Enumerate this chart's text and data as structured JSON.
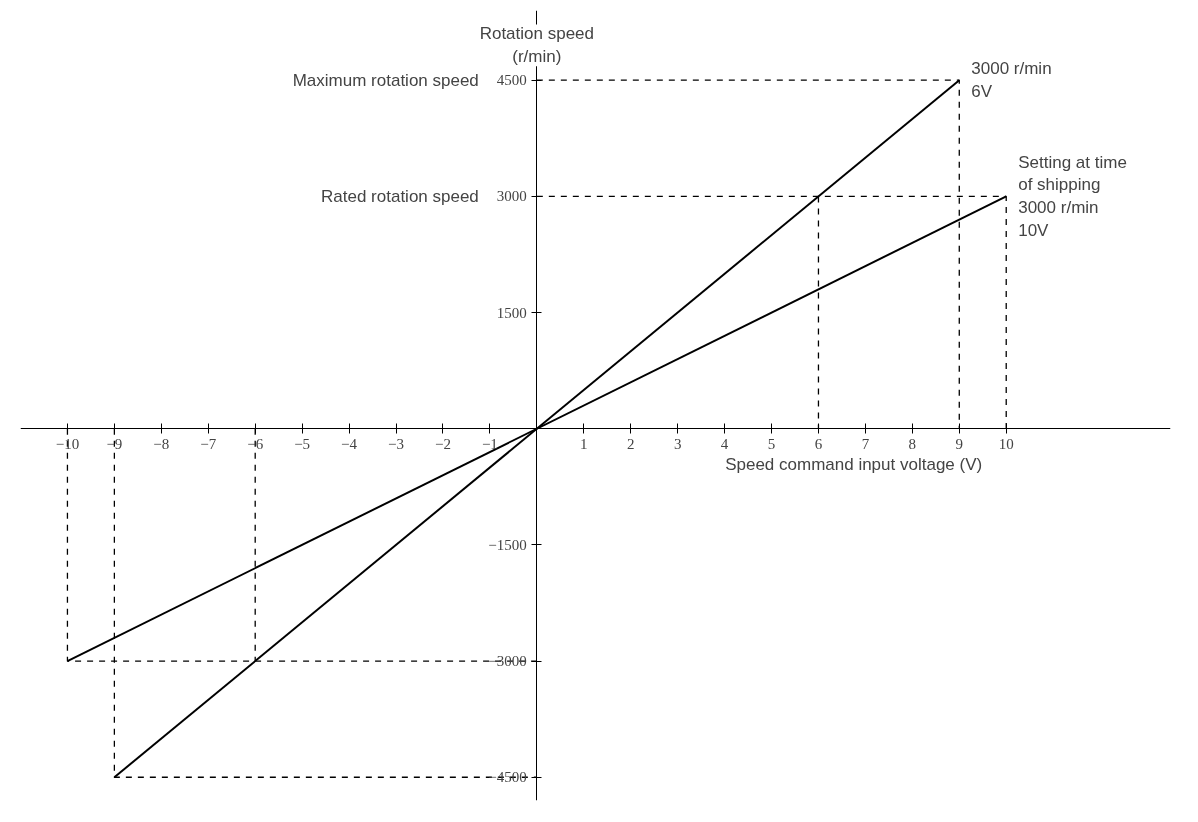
{
  "chart_data": {
    "type": "line",
    "xlabel": "Speed command input voltage (V)",
    "ylabel": "Rotation speed\n(r/min)",
    "xlim": [
      -11,
      13.5
    ],
    "ylim": [
      -4800,
      5400
    ],
    "xticks": [
      -10,
      -9,
      -8,
      -7,
      -6,
      -5,
      -4,
      -3,
      -2,
      -1,
      1,
      2,
      3,
      4,
      5,
      6,
      7,
      8,
      9,
      10
    ],
    "yticks": [
      -4500,
      -3000,
      -1500,
      1500,
      3000,
      4500
    ],
    "grid": false,
    "marker": "none",
    "series": [
      {
        "color": "#000000",
        "x": [
          -9,
          9
        ],
        "values": [
          -4500,
          4500
        ],
        "line_style": "solid"
      },
      {
        "color": "#000000",
        "x": [
          -10,
          10
        ],
        "values": [
          -3000,
          3000
        ],
        "line_style": "solid"
      },
      {
        "color": "#000000",
        "x": [
          0,
          9,
          9
        ],
        "values": [
          4500,
          4500,
          0
        ],
        "line_style": "dashed"
      },
      {
        "color": "#000000",
        "x": [
          0,
          10,
          10
        ],
        "values": [
          3000,
          3000,
          0
        ],
        "line_style": "dashed"
      },
      {
        "color": "#000000",
        "x": [
          6,
          6
        ],
        "values": [
          3000,
          0
        ],
        "line_style": "dashed"
      },
      {
        "color": "#000000",
        "x": [
          -10,
          -10,
          0
        ],
        "values": [
          0,
          -3000,
          -3000
        ],
        "line_style": "dashed"
      },
      {
        "color": "#000000",
        "x": [
          -9,
          -9,
          0
        ],
        "values": [
          0,
          -4500,
          -4500
        ],
        "line_style": "dashed"
      },
      {
        "color": "#000000",
        "x": [
          -6,
          -6
        ],
        "values": [
          0,
          -3000
        ],
        "line_style": "dashed"
      }
    ],
    "annotations": [
      "Maximum rotation speed",
      "Rated rotation speed",
      {
        "text": "3000 r/min\n6V",
        "x": 9,
        "y": 4500
      },
      {
        "text": "Setting at time\nof shipping\n3000 r/min\n10V",
        "x": 10,
        "y": 3000
      }
    ]
  }
}
